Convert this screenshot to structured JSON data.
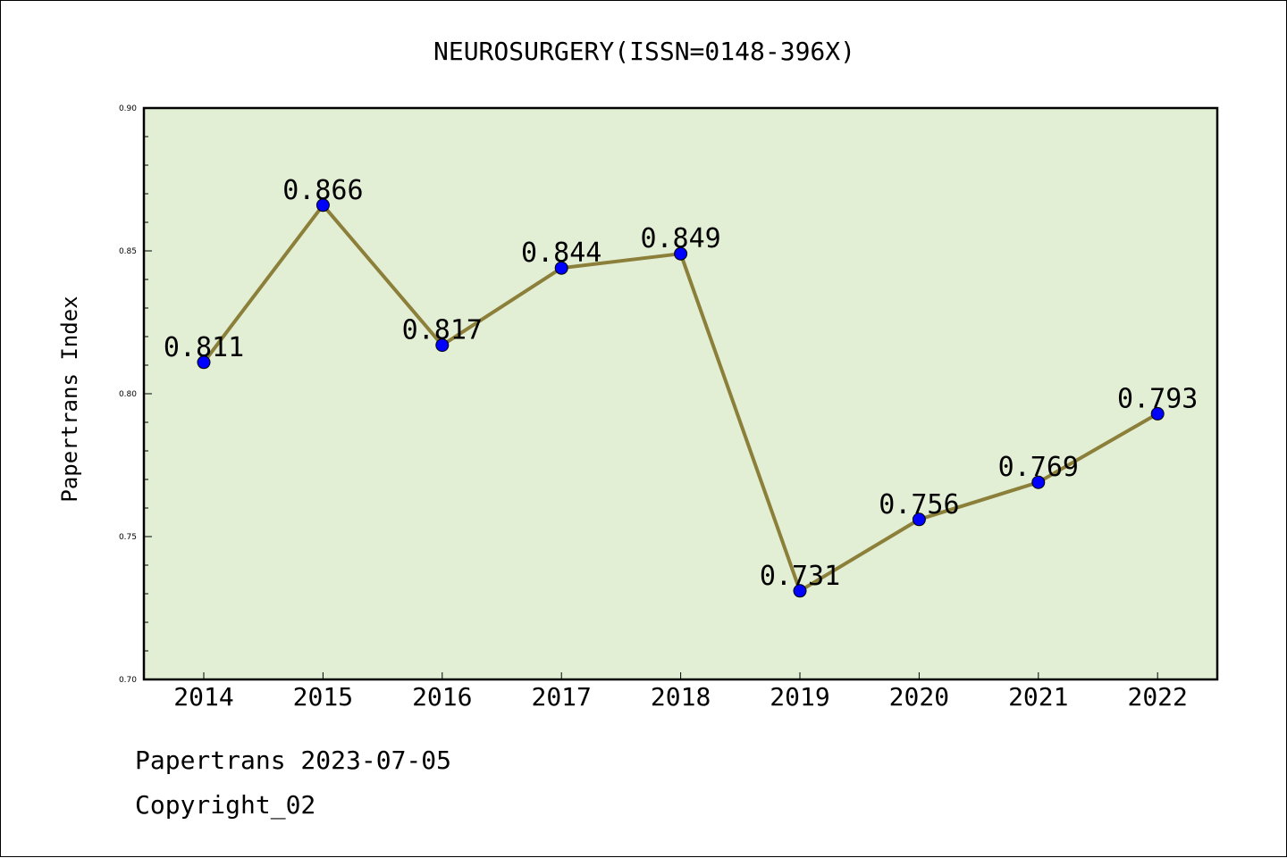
{
  "chart_data": {
    "type": "line",
    "title": "NEUROSURGERY(ISSN=0148-396X)",
    "xlabel": "",
    "ylabel": "Papertrans Index",
    "categories": [
      "2014",
      "2015",
      "2016",
      "2017",
      "2018",
      "2019",
      "2020",
      "2021",
      "2022"
    ],
    "series": [
      {
        "values": [
          0.811,
          0.866,
          0.817,
          0.844,
          0.849,
          0.731,
          0.756,
          0.769,
          0.793
        ]
      }
    ],
    "data_labels": [
      "0.811",
      "0.866",
      "0.817",
      "0.844",
      "0.849",
      "0.731",
      "0.756",
      "0.769",
      "0.793"
    ],
    "ylim": [
      0.7,
      0.9
    ],
    "yticks": [
      0.7,
      0.75,
      0.8,
      0.85,
      0.9
    ],
    "ytick_labels": [
      "0.70",
      "0.75",
      "0.80",
      "0.85",
      "0.90"
    ],
    "grid": false,
    "legend": "none",
    "colors": {
      "plot_background": "#e2efd5",
      "line": "#8b7f3a",
      "marker": "#0000ff"
    }
  },
  "footer": {
    "line1": "Papertrans 2023-07-05",
    "line2": "Copyright_02"
  }
}
